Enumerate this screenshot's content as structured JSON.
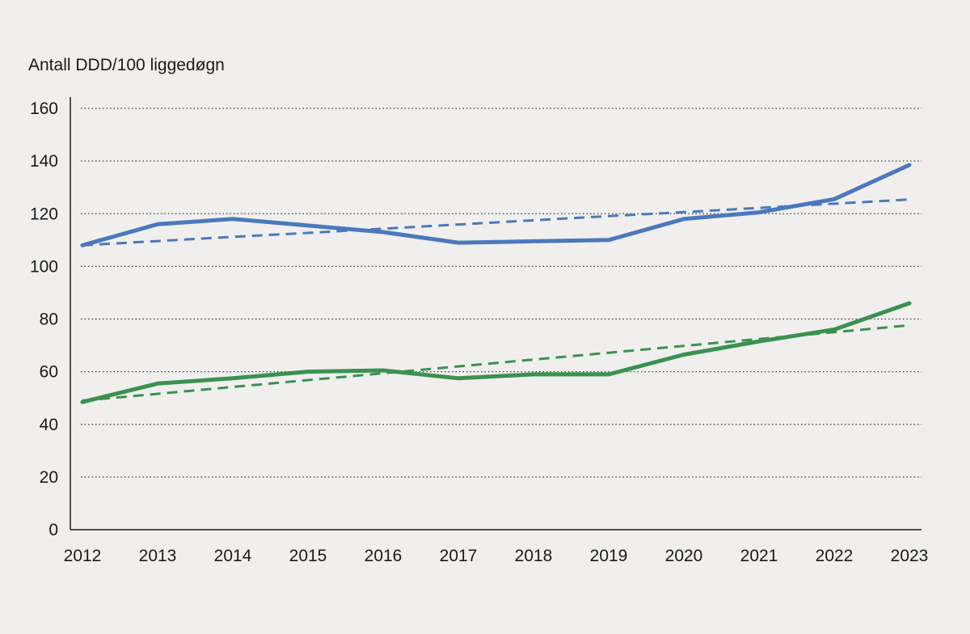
{
  "chart_data": {
    "type": "line",
    "ylabel": "Antall DDD/100 liggedøgn",
    "xlabel": "",
    "ylim": [
      0,
      160
    ],
    "yticks": [
      0,
      20,
      40,
      60,
      80,
      100,
      120,
      140,
      160
    ],
    "x": [
      "2012",
      "2013",
      "2014",
      "2015",
      "2016",
      "2017",
      "2018",
      "2019",
      "2020",
      "2021",
      "2022",
      "2023"
    ],
    "grid": "horizontal dotted",
    "series": [
      {
        "color": "#4a78bd",
        "style": "solid",
        "values": [
          108,
          116,
          118,
          115.5,
          113,
          109,
          109.5,
          110,
          118,
          120.5,
          125.5,
          138.5
        ]
      },
      {
        "color": "#4a78bd",
        "style": "dashed",
        "values": [
          108,
          109.6,
          111.2,
          112.7,
          114.3,
          115.9,
          117.5,
          119.1,
          120.6,
          122.2,
          123.8,
          125.4
        ]
      },
      {
        "color": "#3a9150",
        "style": "solid",
        "values": [
          48.5,
          55.5,
          57.5,
          60,
          60.5,
          57.5,
          59,
          59,
          66.5,
          71.5,
          76,
          86
        ]
      },
      {
        "color": "#3a9150",
        "style": "dashed",
        "values": [
          49,
          51.6,
          54.2,
          56.8,
          59.4,
          62,
          64.6,
          67.2,
          69.8,
          72.4,
          75,
          77.6
        ]
      }
    ]
  }
}
